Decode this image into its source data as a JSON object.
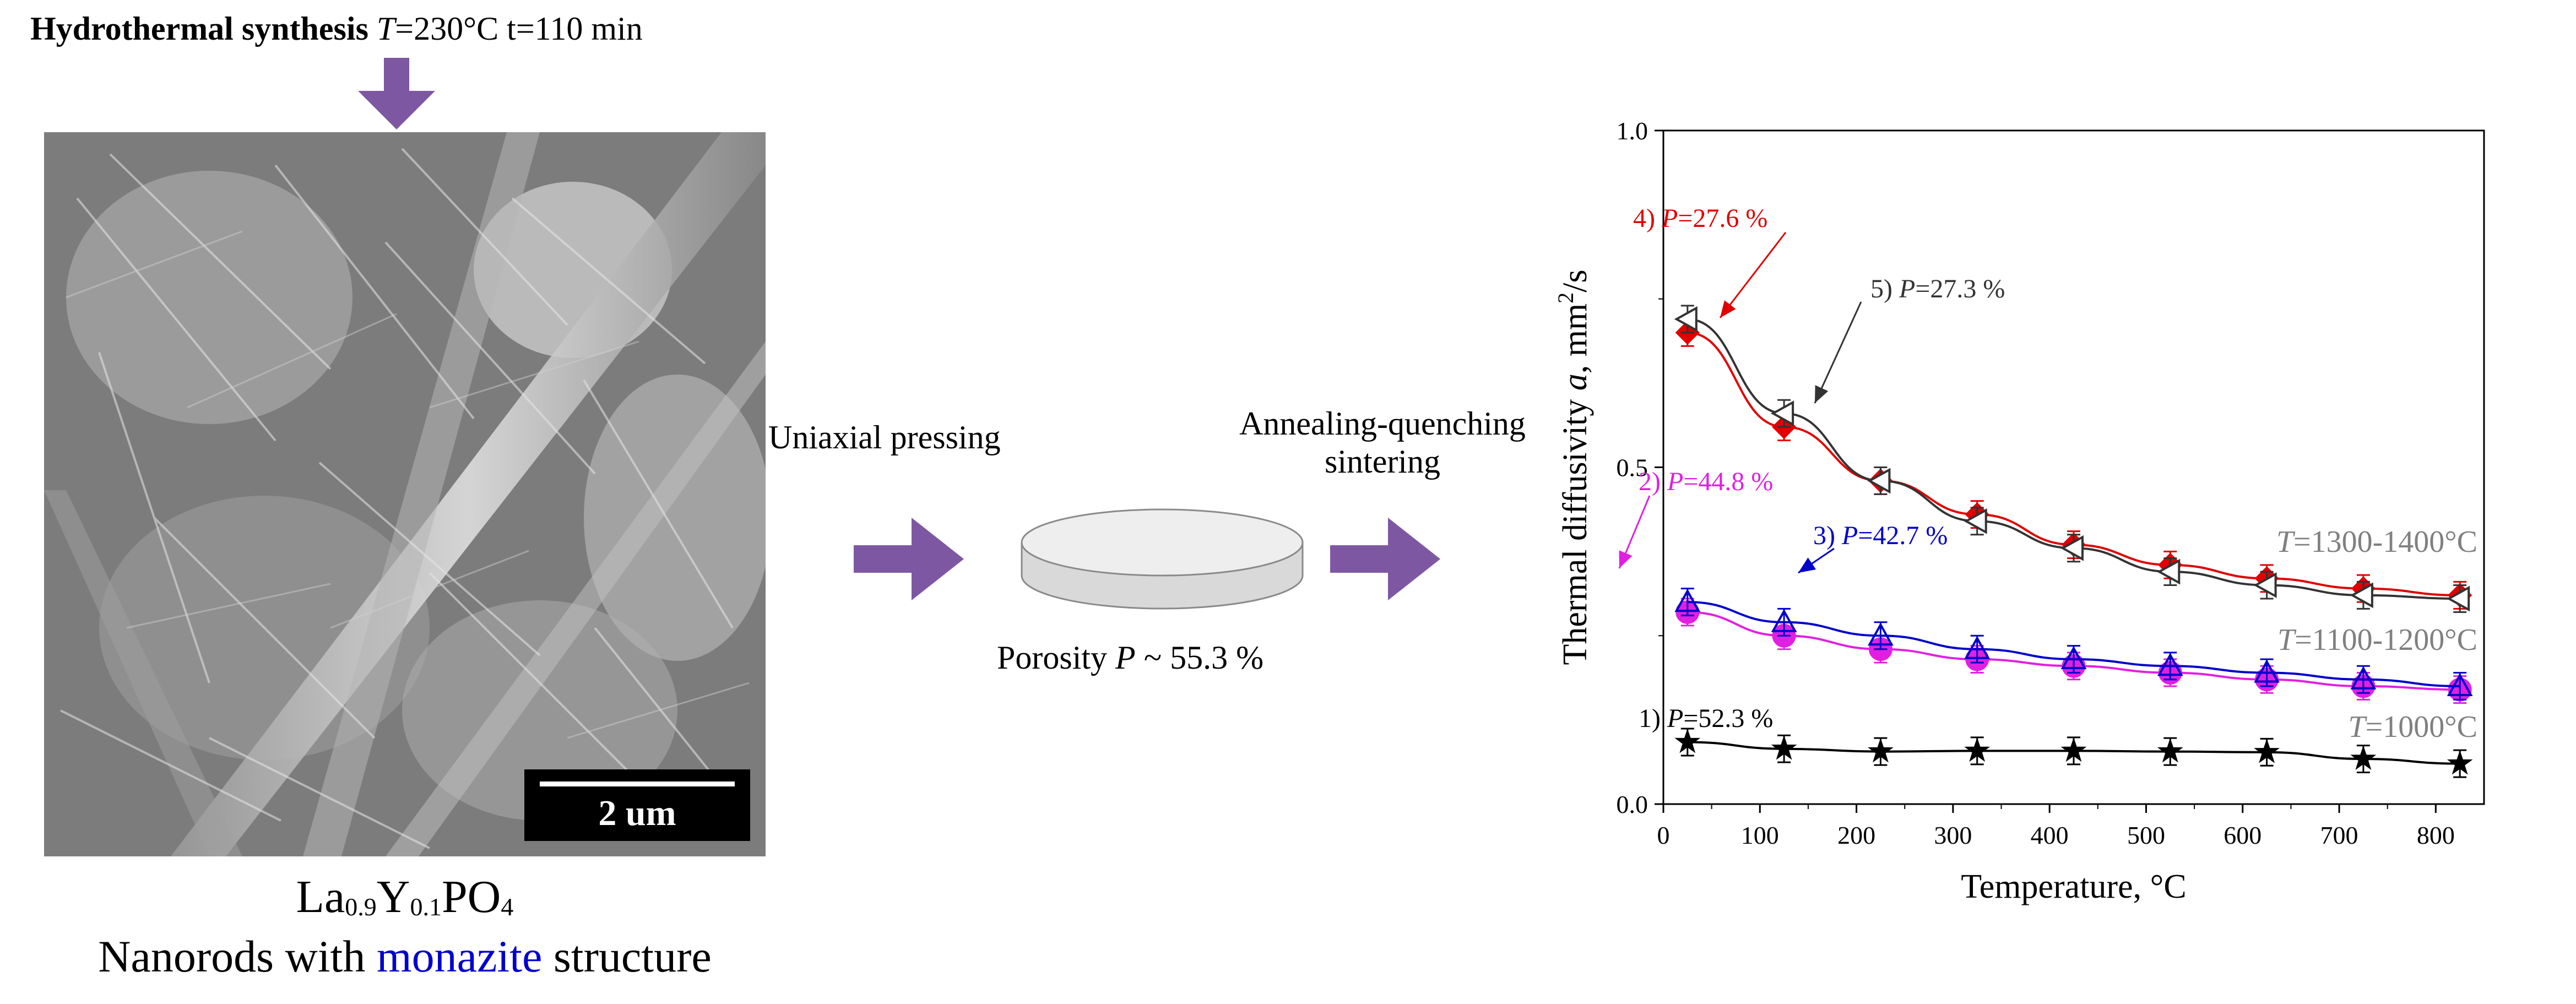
{
  "header": {
    "synthesis_bold": "Hydrothermal synthesis",
    "T_symbol": "T",
    "synthesis_params": "=230°C t=110 min"
  },
  "sem_image": {
    "scale_bar_label": "2 um"
  },
  "material": {
    "formula_parts": [
      "La",
      "0.9",
      "Y",
      "0.1",
      "PO",
      "4"
    ],
    "description_pre": "Nanorods with ",
    "description_highlight": "monazite",
    "description_post": " structure",
    "highlight_color": "#0000cc"
  },
  "process": {
    "step1": "Uniaxial pressing",
    "step2_line1": "Annealing-quenching",
    "step2_line2": "sintering",
    "porosity_prefix": "Porosity ",
    "porosity_symbol": "P",
    "porosity_value": " ~ 55.3 %",
    "arrow_color": "#7e57a3"
  },
  "chart_data": {
    "type": "scatter",
    "xlabel": "Temperature, °C",
    "ylabel_prefix": "Thermal diffusivity ",
    "ylabel_symbol": "a",
    "ylabel_suffix": ", mm",
    "ylabel_sup": "2",
    "ylabel_end": "/s",
    "xlim": [
      0,
      850
    ],
    "ylim": [
      0.0,
      1.0
    ],
    "xticks": [
      0,
      100,
      200,
      300,
      400,
      500,
      600,
      700,
      800
    ],
    "yticks": [
      0.0,
      0.5,
      1.0
    ],
    "ytick_labels": [
      "0.0",
      "0.5",
      "1.0"
    ],
    "series": [
      {
        "name": "4) P=27.6 %",
        "label_num": "4) ",
        "label_val": "=27.6 %",
        "color": "#e00000",
        "marker": "diamond",
        "x": [
          25,
          125,
          225,
          325,
          425,
          525,
          625,
          725,
          825
        ],
        "y": [
          0.7,
          0.56,
          0.48,
          0.43,
          0.385,
          0.355,
          0.335,
          0.32,
          0.31
        ]
      },
      {
        "name": "5) P=27.3 %",
        "label_num": "5) ",
        "label_val": "=27.3 %",
        "color": "#333333",
        "marker": "triangle-left",
        "x": [
          25,
          125,
          225,
          325,
          425,
          525,
          625,
          725,
          825
        ],
        "y": [
          0.72,
          0.58,
          0.48,
          0.42,
          0.38,
          0.345,
          0.325,
          0.31,
          0.305
        ]
      },
      {
        "name": "2) P=44.8 %",
        "label_num": "2) ",
        "label_val": "=44.8 %",
        "color": "#e020e0",
        "marker": "circle",
        "x": [
          25,
          125,
          225,
          325,
          425,
          525,
          625,
          725,
          825
        ],
        "y": [
          0.285,
          0.25,
          0.23,
          0.215,
          0.205,
          0.195,
          0.185,
          0.175,
          0.17
        ]
      },
      {
        "name": "3) P=42.7 %",
        "label_num": "3) ",
        "label_val": "=42.7 %",
        "color": "#0000cc",
        "marker": "triangle-up",
        "x": [
          25,
          125,
          225,
          325,
          425,
          525,
          625,
          725,
          825
        ],
        "y": [
          0.3,
          0.27,
          0.25,
          0.23,
          0.215,
          0.205,
          0.195,
          0.185,
          0.175
        ]
      },
      {
        "name": "1) P=52.3 %",
        "label_num": "1) ",
        "label_val": "=52.3 %",
        "color": "#000000",
        "marker": "star",
        "x": [
          25,
          125,
          225,
          325,
          425,
          525,
          625,
          725,
          825
        ],
        "y": [
          0.092,
          0.082,
          0.078,
          0.079,
          0.079,
          0.078,
          0.077,
          0.067,
          0.06
        ]
      }
    ],
    "error_bar": 0.02,
    "annotations": [
      {
        "symbol": "T",
        "text": "=1300-1400°C",
        "color": "#808080"
      },
      {
        "symbol": "T",
        "text": "=1100-1200°C",
        "color": "#808080"
      },
      {
        "symbol": "T",
        "text": "=1000°C",
        "color": "#808080"
      }
    ]
  }
}
